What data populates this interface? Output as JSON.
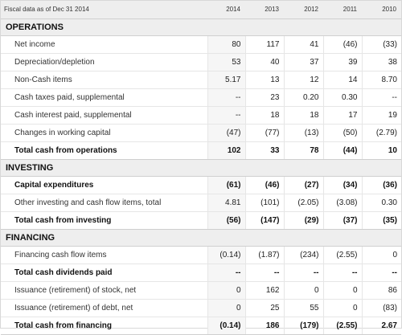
{
  "header": {
    "label": "Fiscal data as of Dec 31 2014",
    "years": [
      "2014",
      "2013",
      "2012",
      "2011",
      "2010"
    ]
  },
  "sections": [
    {
      "title": "OPERATIONS",
      "rows": [
        {
          "label": "Net income",
          "values": [
            "80",
            "117",
            "41",
            "(46)",
            "(33)"
          ],
          "bold": false,
          "total": false
        },
        {
          "label": "Depreciation/depletion",
          "values": [
            "53",
            "40",
            "37",
            "39",
            "38"
          ],
          "bold": false,
          "total": false
        },
        {
          "label": "Non-Cash items",
          "values": [
            "5.17",
            "13",
            "12",
            "14",
            "8.70"
          ],
          "bold": false,
          "total": false
        },
        {
          "label": "Cash taxes paid, supplemental",
          "values": [
            "--",
            "23",
            "0.20",
            "0.30",
            "--"
          ],
          "bold": false,
          "total": false
        },
        {
          "label": "Cash interest paid, supplemental",
          "values": [
            "--",
            "18",
            "18",
            "17",
            "19"
          ],
          "bold": false,
          "total": false
        },
        {
          "label": "Changes in working capital",
          "values": [
            "(47)",
            "(77)",
            "(13)",
            "(50)",
            "(2.79)"
          ],
          "bold": false,
          "total": false
        },
        {
          "label": "Total cash from operations",
          "values": [
            "102",
            "33",
            "78",
            "(44)",
            "10"
          ],
          "bold": true,
          "total": true
        }
      ]
    },
    {
      "title": "INVESTING",
      "rows": [
        {
          "label": "Capital expenditures",
          "values": [
            "(61)",
            "(46)",
            "(27)",
            "(34)",
            "(36)"
          ],
          "bold": true,
          "total": false
        },
        {
          "label": "Other investing and cash flow items, total",
          "values": [
            "4.81",
            "(101)",
            "(2.05)",
            "(3.08)",
            "0.30"
          ],
          "bold": false,
          "total": false
        },
        {
          "label": "Total cash from investing",
          "values": [
            "(56)",
            "(147)",
            "(29)",
            "(37)",
            "(35)"
          ],
          "bold": true,
          "total": true
        }
      ]
    },
    {
      "title": "FINANCING",
      "rows": [
        {
          "label": "Financing cash flow items",
          "values": [
            "(0.14)",
            "(1.87)",
            "(234)",
            "(2.55)",
            "0"
          ],
          "bold": false,
          "total": false
        },
        {
          "label": "Total cash dividends paid",
          "values": [
            "--",
            "--",
            "--",
            "--",
            "--"
          ],
          "bold": true,
          "total": false
        },
        {
          "label": "Issuance (retirement) of stock, net",
          "values": [
            "0",
            "162",
            "0",
            "0",
            "86"
          ],
          "bold": false,
          "total": false
        },
        {
          "label": "Issuance (retirement) of debt, net",
          "values": [
            "0",
            "25",
            "55",
            "0",
            "(83)"
          ],
          "bold": false,
          "total": false
        },
        {
          "label": "Total cash from financing",
          "values": [
            "(0.14)",
            "186",
            "(179)",
            "(2.55)",
            "2.67"
          ],
          "bold": true,
          "total": true
        }
      ]
    }
  ]
}
